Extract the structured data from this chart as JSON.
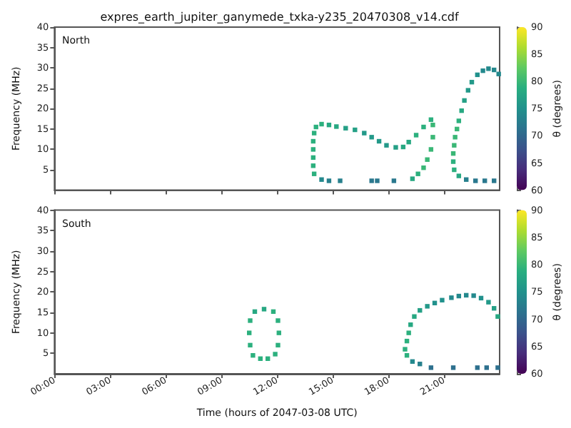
{
  "chart_data": [
    {
      "type": "scatter",
      "title": "expres_earth_jupiter_ganymede_txka-y235_20470308_v14.cdf",
      "ylabel": "Frequency (MHz)",
      "clabel": "θ (degrees)",
      "annotations": [
        "North"
      ],
      "tick_labels": "y",
      "marker": "square",
      "xlim": [
        0,
        24
      ],
      "xticks": [
        0,
        3,
        6,
        9,
        12,
        15,
        18,
        21
      ],
      "ylim": [
        0,
        40
      ],
      "yticks": [
        5,
        10,
        15,
        20,
        25,
        30,
        35,
        40
      ],
      "clim": [
        60,
        90
      ],
      "cticks": [
        60,
        65,
        70,
        75,
        80,
        85,
        90
      ],
      "x": [
        14.0,
        13.95,
        13.95,
        13.95,
        13.95,
        14.0,
        14.1,
        14.4,
        14.8,
        15.2,
        15.7,
        16.2,
        16.7,
        17.1,
        17.5,
        17.9,
        18.4,
        18.8,
        19.1,
        19.5,
        19.9,
        20.3,
        20.4,
        20.4,
        20.3,
        20.1,
        19.9,
        19.6,
        19.3,
        14.4,
        14.8,
        15.4,
        17.1,
        17.4,
        18.3,
        21.8,
        21.55,
        21.5,
        21.5,
        21.55,
        21.6,
        21.7,
        21.8,
        21.95,
        22.1,
        22.3,
        22.5,
        22.8,
        23.1,
        23.4,
        23.7,
        23.95,
        22.2,
        22.7,
        23.2,
        23.7
      ],
      "values": [
        4,
        6,
        8,
        10,
        12,
        14,
        15.5,
        16.2,
        16,
        15.6,
        15.2,
        14.8,
        14,
        13,
        12,
        11,
        10.5,
        10.6,
        11.8,
        13.5,
        15.5,
        17.3,
        16,
        13,
        10,
        7.5,
        5.5,
        4,
        2.8,
        2.6,
        2.3,
        2.3,
        2.3,
        2.3,
        2.3,
        3.5,
        5,
        7,
        9,
        11,
        13,
        15,
        17,
        19.5,
        22,
        24.5,
        26.5,
        28.3,
        29.3,
        29.8,
        29.5,
        28.5,
        2.6,
        2.3,
        2.3,
        2.3
      ],
      "cvalues": [
        79,
        79,
        79,
        79,
        79,
        79,
        79,
        79,
        78,
        78,
        77,
        77,
        76,
        76,
        76,
        76,
        77,
        78,
        78,
        79,
        79,
        79,
        80,
        80,
        80,
        80,
        80,
        79,
        78,
        74,
        73,
        73,
        72,
        72,
        72,
        78,
        79,
        79,
        80,
        80,
        80,
        80,
        79,
        78,
        77,
        76,
        76,
        75,
        74,
        74,
        74,
        74,
        73,
        72,
        72,
        72
      ]
    },
    {
      "type": "scatter",
      "xlabel": "Time (hours of 2047-03-08 UTC)",
      "ylabel": "Frequency (MHz)",
      "clabel": "θ (degrees)",
      "annotations": [
        "South"
      ],
      "marker": "square",
      "xlim": [
        0,
        24
      ],
      "xticks": [
        {
          "value": 0,
          "label": "00:00"
        },
        {
          "value": 3,
          "label": "03:00"
        },
        {
          "value": 6,
          "label": "06:00"
        },
        {
          "value": 9,
          "label": "09:00"
        },
        {
          "value": 12,
          "label": "12:00"
        },
        {
          "value": 15,
          "label": "15:00"
        },
        {
          "value": 18,
          "label": "18:00"
        },
        {
          "value": 21,
          "label": "21:00"
        }
      ],
      "ylim": [
        0,
        40
      ],
      "yticks": [
        5,
        10,
        15,
        20,
        25,
        30,
        35,
        40
      ],
      "clim": [
        60,
        90
      ],
      "cticks": [
        60,
        65,
        70,
        75,
        80,
        85,
        90
      ],
      "x": [
        11.3,
        11.8,
        12.05,
        12.1,
        12.05,
        11.9,
        11.5,
        11.1,
        10.7,
        10.55,
        10.5,
        10.55,
        10.8,
        19.0,
        18.9,
        19.0,
        19.1,
        19.2,
        19.4,
        19.7,
        20.1,
        20.5,
        20.9,
        21.4,
        21.8,
        22.2,
        22.6,
        23.0,
        23.4,
        23.7,
        23.9,
        19.3,
        19.7,
        20.3,
        21.5,
        22.8,
        23.3,
        23.9
      ],
      "values": [
        15.8,
        15.2,
        13,
        10,
        7,
        4.8,
        3.7,
        3.7,
        4.5,
        7,
        10,
        13,
        15.2,
        4.5,
        6,
        8,
        10,
        12,
        14,
        15.5,
        16.5,
        17.3,
        18,
        18.6,
        19,
        19.2,
        19.1,
        18.5,
        17.5,
        16,
        14,
        3.0,
        2.4,
        1.5,
        1.5,
        1.5,
        1.5,
        1.5
      ],
      "cvalues": [
        78,
        79,
        79,
        79,
        79,
        79,
        79,
        79,
        79,
        79,
        79,
        79,
        78,
        79,
        79,
        79,
        79,
        78,
        78,
        77,
        76,
        75,
        75,
        74,
        74,
        74,
        74,
        75,
        76,
        77,
        78,
        74,
        73,
        71,
        71,
        71,
        71,
        71
      ]
    }
  ]
}
